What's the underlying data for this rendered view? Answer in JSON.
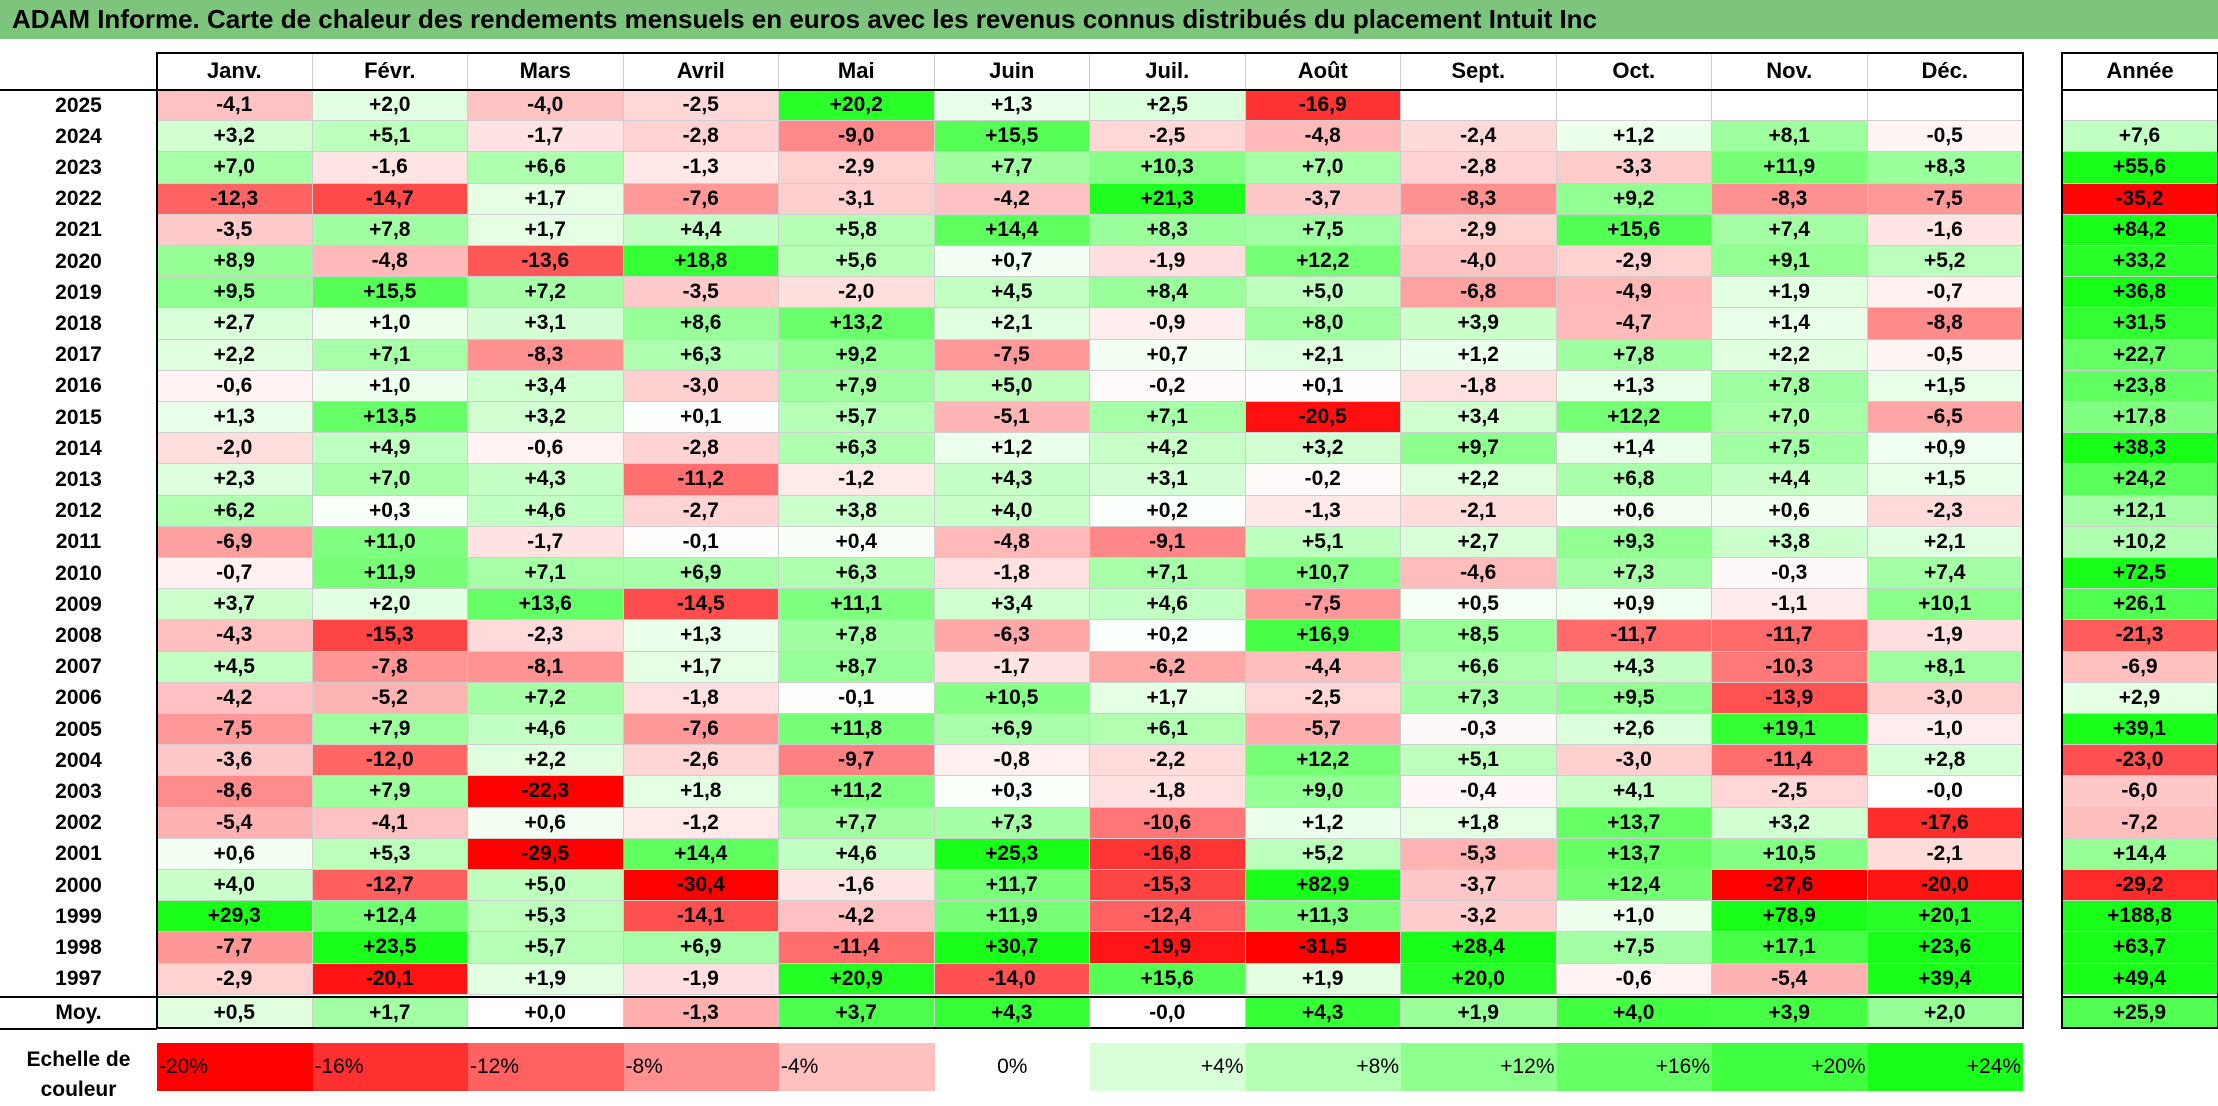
{
  "title": "ADAM Informe. Carte de chaleur des rendements mensuels en euros avec les revenus connus distribués du placement Intuit Inc",
  "chart_data": {
    "type": "heatmap",
    "months": [
      "Janv.",
      "Févr.",
      "Mars",
      "Avril",
      "Mai",
      "Juin",
      "Juil.",
      "Août",
      "Sept.",
      "Oct.",
      "Nov.",
      "Déc."
    ],
    "year_header": "Année",
    "rows": [
      {
        "year": "2025",
        "values": [
          "-4,1",
          "+2,0",
          "-4,0",
          "-2,5",
          "+20,2",
          "+1,3",
          "+2,5",
          "-16,9",
          "",
          "",
          "",
          ""
        ],
        "annual": ""
      },
      {
        "year": "2024",
        "values": [
          "+3,2",
          "+5,1",
          "-1,7",
          "-2,8",
          "-9,0",
          "+15,5",
          "-2,5",
          "-4,8",
          "-2,4",
          "+1,2",
          "+8,1",
          "-0,5"
        ],
        "annual": "+7,6"
      },
      {
        "year": "2023",
        "values": [
          "+7,0",
          "-1,6",
          "+6,6",
          "-1,3",
          "-2,9",
          "+7,7",
          "+10,3",
          "+7,0",
          "-2,8",
          "-3,3",
          "+11,9",
          "+8,3"
        ],
        "annual": "+55,6"
      },
      {
        "year": "2022",
        "values": [
          "-12,3",
          "-14,7",
          "+1,7",
          "-7,6",
          "-3,1",
          "-4,2",
          "+21,3",
          "-3,7",
          "-8,3",
          "+9,2",
          "-8,3",
          "-7,5"
        ],
        "annual": "-35,2"
      },
      {
        "year": "2021",
        "values": [
          "-3,5",
          "+7,8",
          "+1,7",
          "+4,4",
          "+5,8",
          "+14,4",
          "+8,3",
          "+7,5",
          "-2,9",
          "+15,6",
          "+7,4",
          "-1,6"
        ],
        "annual": "+84,2"
      },
      {
        "year": "2020",
        "values": [
          "+8,9",
          "-4,8",
          "-13,6",
          "+18,8",
          "+5,6",
          "+0,7",
          "-1,9",
          "+12,2",
          "-4,0",
          "-2,9",
          "+9,1",
          "+5,2"
        ],
        "annual": "+33,2"
      },
      {
        "year": "2019",
        "values": [
          "+9,5",
          "+15,5",
          "+7,2",
          "-3,5",
          "-2,0",
          "+4,5",
          "+8,4",
          "+5,0",
          "-6,8",
          "-4,9",
          "+1,9",
          "-0,7"
        ],
        "annual": "+36,8"
      },
      {
        "year": "2018",
        "values": [
          "+2,7",
          "+1,0",
          "+3,1",
          "+8,6",
          "+13,2",
          "+2,1",
          "-0,9",
          "+8,0",
          "+3,9",
          "-4,7",
          "+1,4",
          "-8,8"
        ],
        "annual": "+31,5"
      },
      {
        "year": "2017",
        "values": [
          "+2,2",
          "+7,1",
          "-8,3",
          "+6,3",
          "+9,2",
          "-7,5",
          "+0,7",
          "+2,1",
          "+1,2",
          "+7,8",
          "+2,2",
          "-0,5"
        ],
        "annual": "+22,7"
      },
      {
        "year": "2016",
        "values": [
          "-0,6",
          "+1,0",
          "+3,4",
          "-3,0",
          "+7,9",
          "+5,0",
          "-0,2",
          "+0,1",
          "-1,8",
          "+1,3",
          "+7,8",
          "+1,5"
        ],
        "annual": "+23,8"
      },
      {
        "year": "2015",
        "values": [
          "+1,3",
          "+13,5",
          "+3,2",
          "+0,1",
          "+5,7",
          "-5,1",
          "+7,1",
          "-20,5",
          "+3,4",
          "+12,2",
          "+7,0",
          "-6,5"
        ],
        "annual": "+17,8"
      },
      {
        "year": "2014",
        "values": [
          "-2,0",
          "+4,9",
          "-0,6",
          "-2,8",
          "+6,3",
          "+1,2",
          "+4,2",
          "+3,2",
          "+9,7",
          "+1,4",
          "+7,5",
          "+0,9"
        ],
        "annual": "+38,3"
      },
      {
        "year": "2013",
        "values": [
          "+2,3",
          "+7,0",
          "+4,3",
          "-11,2",
          "-1,2",
          "+4,3",
          "+3,1",
          "-0,2",
          "+2,2",
          "+6,8",
          "+4,4",
          "+1,5"
        ],
        "annual": "+24,2"
      },
      {
        "year": "2012",
        "values": [
          "+6,2",
          "+0,3",
          "+4,6",
          "-2,7",
          "+3,8",
          "+4,0",
          "+0,2",
          "-1,3",
          "-2,1",
          "+0,6",
          "+0,6",
          "-2,3"
        ],
        "annual": "+12,1"
      },
      {
        "year": "2011",
        "values": [
          "-6,9",
          "+11,0",
          "-1,7",
          "-0,1",
          "+0,4",
          "-4,8",
          "-9,1",
          "+5,1",
          "+2,7",
          "+9,3",
          "+3,8",
          "+2,1"
        ],
        "annual": "+10,2"
      },
      {
        "year": "2010",
        "values": [
          "-0,7",
          "+11,9",
          "+7,1",
          "+6,9",
          "+6,3",
          "-1,8",
          "+7,1",
          "+10,7",
          "-4,6",
          "+7,3",
          "-0,3",
          "+7,4"
        ],
        "annual": "+72,5"
      },
      {
        "year": "2009",
        "values": [
          "+3,7",
          "+2,0",
          "+13,6",
          "-14,5",
          "+11,1",
          "+3,4",
          "+4,6",
          "-7,5",
          "+0,5",
          "+0,9",
          "-1,1",
          "+10,1"
        ],
        "annual": "+26,1"
      },
      {
        "year": "2008",
        "values": [
          "-4,3",
          "-15,3",
          "-2,3",
          "+1,3",
          "+7,8",
          "-6,3",
          "+0,2",
          "+16,9",
          "+8,5",
          "-11,7",
          "-11,7",
          "-1,9"
        ],
        "annual": "-21,3"
      },
      {
        "year": "2007",
        "values": [
          "+4,5",
          "-7,8",
          "-8,1",
          "+1,7",
          "+8,7",
          "-1,7",
          "-6,2",
          "-4,4",
          "+6,6",
          "+4,3",
          "-10,3",
          "+8,1"
        ],
        "annual": "-6,9"
      },
      {
        "year": "2006",
        "values": [
          "-4,2",
          "-5,2",
          "+7,2",
          "-1,8",
          "-0,1",
          "+10,5",
          "+1,7",
          "-2,5",
          "+7,3",
          "+9,5",
          "-13,9",
          "-3,0"
        ],
        "annual": "+2,9"
      },
      {
        "year": "2005",
        "values": [
          "-7,5",
          "+7,9",
          "+4,6",
          "-7,6",
          "+11,8",
          "+6,9",
          "+6,1",
          "-5,7",
          "-0,3",
          "+2,6",
          "+19,1",
          "-1,0"
        ],
        "annual": "+39,1"
      },
      {
        "year": "2004",
        "values": [
          "-3,6",
          "-12,0",
          "+2,2",
          "-2,6",
          "-9,7",
          "-0,8",
          "-2,2",
          "+12,2",
          "+5,1",
          "-3,0",
          "-11,4",
          "+2,8"
        ],
        "annual": "-23,0"
      },
      {
        "year": "2003",
        "values": [
          "-8,6",
          "+7,9",
          "-22,3",
          "+1,8",
          "+11,2",
          "+0,3",
          "-1,8",
          "+9,0",
          "-0,4",
          "+4,1",
          "-2,5",
          "-0,0"
        ],
        "annual": "-6,0"
      },
      {
        "year": "2002",
        "values": [
          "-5,4",
          "-4,1",
          "+0,6",
          "-1,2",
          "+7,7",
          "+7,3",
          "-10,6",
          "+1,2",
          "+1,8",
          "+13,7",
          "+3,2",
          "-17,6"
        ],
        "annual": "-7,2"
      },
      {
        "year": "2001",
        "values": [
          "+0,6",
          "+5,3",
          "-29,5",
          "+14,4",
          "+4,6",
          "+25,3",
          "-16,8",
          "+5,2",
          "-5,3",
          "+13,7",
          "+10,5",
          "-2,1"
        ],
        "annual": "+14,4"
      },
      {
        "year": "2000",
        "values": [
          "+4,0",
          "-12,7",
          "+5,0",
          "-30,4",
          "-1,6",
          "+11,7",
          "-15,3",
          "+82,9",
          "-3,7",
          "+12,4",
          "-27,6",
          "-20,0"
        ],
        "annual": "-29,2"
      },
      {
        "year": "1999",
        "values": [
          "+29,3",
          "+12,4",
          "+5,3",
          "-14,1",
          "-4,2",
          "+11,9",
          "-12,4",
          "+11,3",
          "-3,2",
          "+1,0",
          "+78,9",
          "+20,1"
        ],
        "annual": "+188,8"
      },
      {
        "year": "1998",
        "values": [
          "-7,7",
          "+23,5",
          "+5,7",
          "+6,9",
          "-11,4",
          "+30,7",
          "-19,9",
          "-31,5",
          "+28,4",
          "+7,5",
          "+17,1",
          "+23,6"
        ],
        "annual": "+63,7"
      },
      {
        "year": "1997",
        "values": [
          "-2,9",
          "-20,1",
          "+1,9",
          "-1,9",
          "+20,9",
          "-14,0",
          "+15,6",
          "+1,9",
          "+20,0",
          "-0,6",
          "-5,4",
          "+39,4"
        ],
        "annual": "+49,4"
      }
    ],
    "average": {
      "label": "Moy.",
      "values": [
        "+0,5",
        "+1,7",
        "+0,0",
        "-1,3",
        "+3,7",
        "+4,3",
        "-0,0",
        "+4,3",
        "+1,9",
        "+4,0",
        "+3,9",
        "+2,0"
      ],
      "annual": "+25,9"
    },
    "scale": {
      "label_line1": "Echelle de",
      "label_line2": "couleur",
      "stops": [
        "-20%",
        "-16%",
        "-12%",
        "-8%",
        "-4%",
        "0%",
        "+4%",
        "+8%",
        "+12%",
        "+16%",
        "+20%",
        "+24%"
      ],
      "colors": [
        "#ff0000",
        "#ff3030",
        "#ff6060",
        "#ff9090",
        "#ffc0c0",
        "#ffffff",
        "#d9ffd9",
        "#b3ffb3",
        "#8cff8c",
        "#66ff66",
        "#40ff40",
        "#1aff1a"
      ]
    }
  }
}
